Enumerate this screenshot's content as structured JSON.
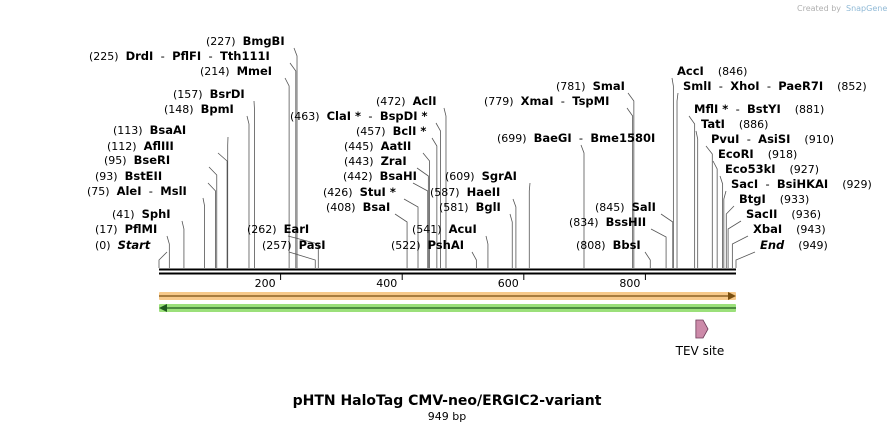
{
  "credit": {
    "prefix": "Created by",
    "brand": "SnapGene"
  },
  "title": "pHTN HaloTag CMV-neo/ERGIC2-variant",
  "length_label": "949 bp",
  "ticks": [
    {
      "label": "200",
      "bp": 200
    },
    {
      "label": "400",
      "bp": 400
    },
    {
      "label": "600",
      "bp": 600
    },
    {
      "label": "800",
      "bp": 800
    }
  ],
  "left_labels": [
    {
      "pos": "(0)",
      "bp": 0,
      "names": [
        "Start"
      ],
      "italic": true
    },
    {
      "pos": "(17)",
      "bp": 17,
      "names": [
        "PflMI"
      ]
    },
    {
      "pos": "(41)",
      "bp": 41,
      "names": [
        "SphI"
      ]
    },
    {
      "pos": "(75)",
      "bp": 75,
      "names": [
        "AleI",
        "MslI"
      ]
    },
    {
      "pos": "(93)",
      "bp": 93,
      "names": [
        "BstEII"
      ]
    },
    {
      "pos": "(95)",
      "bp": 95,
      "names": [
        "BseRI"
      ]
    },
    {
      "pos": "(112)",
      "bp": 112,
      "names": [
        "AflIII"
      ]
    },
    {
      "pos": "(113)",
      "bp": 113,
      "names": [
        "BsaAI"
      ]
    },
    {
      "pos": "(148)",
      "bp": 148,
      "names": [
        "BpmI"
      ]
    },
    {
      "pos": "(157)",
      "bp": 157,
      "names": [
        "BsrDI"
      ]
    },
    {
      "pos": "(214)",
      "bp": 214,
      "names": [
        "MmeI"
      ]
    },
    {
      "pos": "(225)",
      "bp": 225,
      "names": [
        "DrdI",
        "PflFI",
        "Tth111I"
      ]
    },
    {
      "pos": "(227)",
      "bp": 227,
      "names": [
        "BmgBI"
      ]
    }
  ],
  "mid_labels": [
    {
      "pos": "(257)",
      "bp": 257,
      "names": [
        "PasI"
      ]
    },
    {
      "pos": "(262)",
      "bp": 262,
      "names": [
        "EarI"
      ]
    },
    {
      "pos": "(463)",
      "bp": 463,
      "names": [
        "ClaI *",
        "BspDI *"
      ]
    },
    {
      "pos": "(472)",
      "bp": 472,
      "names": [
        "AclI"
      ]
    },
    {
      "pos": "(457)",
      "bp": 457,
      "names": [
        "BclI *"
      ]
    },
    {
      "pos": "(445)",
      "bp": 445,
      "names": [
        "AatII"
      ]
    },
    {
      "pos": "(443)",
      "bp": 443,
      "names": [
        "ZraI"
      ]
    },
    {
      "pos": "(442)",
      "bp": 442,
      "names": [
        "BsaHI"
      ]
    },
    {
      "pos": "(426)",
      "bp": 426,
      "names": [
        "StuI *"
      ]
    },
    {
      "pos": "(408)",
      "bp": 408,
      "names": [
        "BsaI"
      ]
    },
    {
      "pos": "(522)",
      "bp": 522,
      "names": [
        "PshAI"
      ]
    },
    {
      "pos": "(541)",
      "bp": 541,
      "names": [
        "AcuI"
      ]
    },
    {
      "pos": "(581)",
      "bp": 581,
      "names": [
        "BglI"
      ]
    },
    {
      "pos": "(587)",
      "bp": 587,
      "names": [
        "HaeII"
      ]
    },
    {
      "pos": "(609)",
      "bp": 609,
      "names": [
        "SgrAI"
      ]
    },
    {
      "pos": "(699)",
      "bp": 699,
      "names": [
        "BaeGI",
        "Bme1580I"
      ]
    },
    {
      "pos": "(779)",
      "bp": 779,
      "names": [
        "XmaI",
        "TspMI"
      ]
    },
    {
      "pos": "(781)",
      "bp": 781,
      "names": [
        "SmaI"
      ]
    },
    {
      "pos": "(808)",
      "bp": 808,
      "names": [
        "BbsI"
      ]
    },
    {
      "pos": "(834)",
      "bp": 834,
      "names": [
        "BssHII"
      ]
    },
    {
      "pos": "(845)",
      "bp": 845,
      "names": [
        "SalI"
      ]
    }
  ],
  "right_labels": [
    {
      "pos": "(846)",
      "bp": 846,
      "names": [
        "AccI"
      ]
    },
    {
      "pos": "(852)",
      "bp": 852,
      "names": [
        "SmlI",
        "XhoI",
        "PaeR7I"
      ]
    },
    {
      "pos": "(881)",
      "bp": 881,
      "names": [
        "MflI *",
        "BstYI"
      ]
    },
    {
      "pos": "(886)",
      "bp": 886,
      "names": [
        "TatI"
      ]
    },
    {
      "pos": "(910)",
      "bp": 910,
      "names": [
        "PvuI",
        "AsiSI"
      ]
    },
    {
      "pos": "(918)",
      "bp": 918,
      "names": [
        "EcoRI"
      ]
    },
    {
      "pos": "(927)",
      "bp": 927,
      "names": [
        "Eco53kI"
      ]
    },
    {
      "pos": "(929)",
      "bp": 929,
      "names": [
        "SacI",
        "BsiHKAI"
      ]
    },
    {
      "pos": "(933)",
      "bp": 933,
      "names": [
        "BtgI"
      ]
    },
    {
      "pos": "(936)",
      "bp": 936,
      "names": [
        "SacII"
      ]
    },
    {
      "pos": "(943)",
      "bp": 943,
      "names": [
        "XbaI"
      ]
    },
    {
      "pos": "(949)",
      "bp": 949,
      "names": [
        "End"
      ],
      "italic": true
    }
  ],
  "features": [
    {
      "name": "",
      "color": "#f5a623",
      "fill": "#f7c98a",
      "direction": "forward",
      "start_bp": 0,
      "end_bp": 949
    },
    {
      "name": "",
      "color": "#2f9e2f",
      "fill": "#9be07a",
      "direction": "reverse",
      "start_bp": 0,
      "end_bp": 949
    },
    {
      "name": "TEV site",
      "color": "#a0608a",
      "fill": "#cc8aa9",
      "direction": "forward",
      "start_bp": 883,
      "end_bp": 903
    }
  ]
}
